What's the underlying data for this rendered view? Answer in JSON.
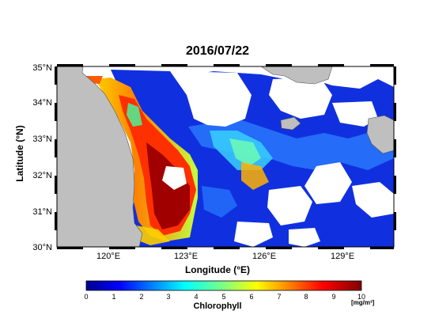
{
  "title": "2016/07/22",
  "axes": {
    "ylabel": "Latitude (°N)",
    "xlabel": "Longitude (°E)",
    "lat_ticks": [
      "35°N",
      "34°N",
      "33°N",
      "32°N",
      "31°N",
      "30°N"
    ],
    "lon_ticks": [
      "120°E",
      "123°E",
      "126°E",
      "129°E"
    ]
  },
  "colorbar": {
    "label": "Chlorophyll",
    "unit": "[mg/m³]",
    "ticks": [
      "0",
      "1",
      "2",
      "3",
      "4",
      "5",
      "6",
      "7",
      "8",
      "9",
      "10"
    ],
    "range": [
      0,
      10
    ]
  },
  "colors": {
    "land": "#bfbfbf",
    "nodata": "#ffffff",
    "frame": "#000000"
  }
}
